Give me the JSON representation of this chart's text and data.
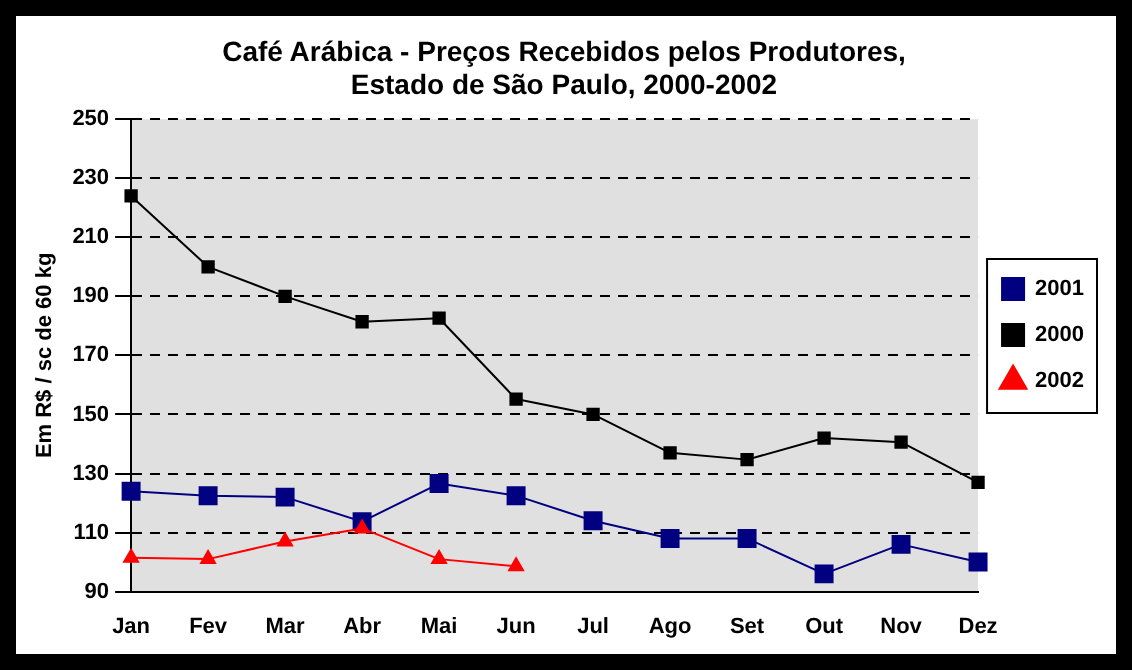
{
  "chart_data": {
    "type": "line",
    "title": "Café Arábica - Preços Recebidos pelos Produtores,\nEstado de São Paulo, 2000-2002",
    "ylabel": "Em R$ / sc de 60 kg",
    "categories": [
      "Jan",
      "Fev",
      "Mar",
      "Abr",
      "Mai",
      "Jun",
      "Jul",
      "Ago",
      "Set",
      "Out",
      "Nov",
      "Dez"
    ],
    "series": [
      {
        "name": "2001",
        "color": "#000080",
        "marker": "square",
        "values": [
          124,
          122.5,
          122,
          113.7,
          126.6,
          122.5,
          114,
          108,
          108,
          96,
          106,
          100
        ]
      },
      {
        "name": "2000",
        "color": "#000000",
        "marker": "square",
        "values": [
          224,
          200,
          190,
          181.4,
          182.6,
          155.2,
          150,
          137,
          134.7,
          142,
          140.6,
          127
        ]
      },
      {
        "name": "2002",
        "color": "#ff0000",
        "marker": "triangle",
        "values": [
          101.5,
          101,
          107,
          111.4,
          101,
          98.6,
          null,
          null,
          null,
          null,
          null,
          null
        ]
      }
    ],
    "ylim": [
      90,
      250
    ],
    "yticks": [
      90,
      110,
      130,
      150,
      170,
      190,
      210,
      230,
      250
    ],
    "grid": "y",
    "legend": "right"
  }
}
